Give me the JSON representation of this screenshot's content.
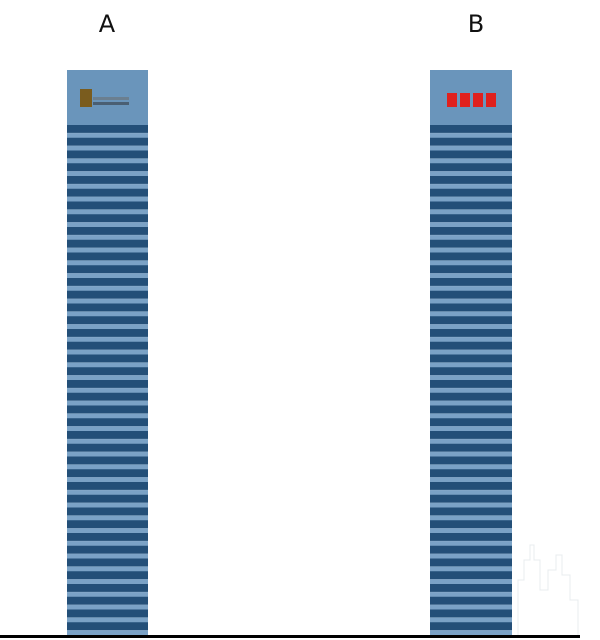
{
  "towers": [
    {
      "label": "A"
    },
    {
      "label": "B"
    }
  ]
}
